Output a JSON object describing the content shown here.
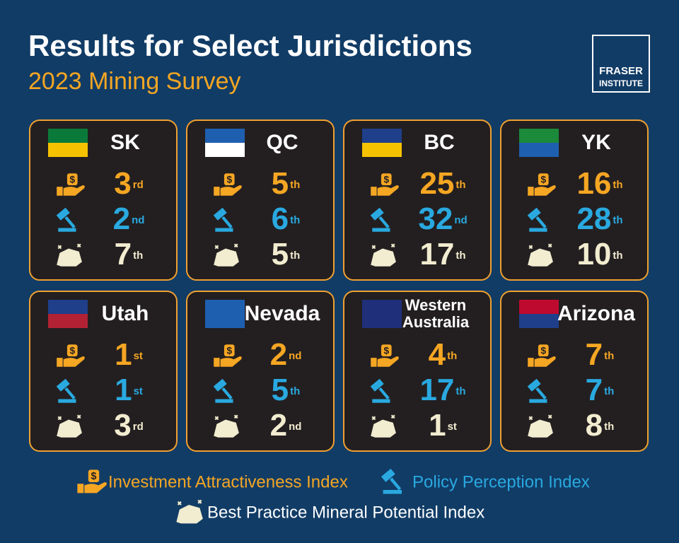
{
  "header": {
    "title": "Results for Select Jurisdictions",
    "subtitle": "2023 Mining Survey",
    "logo": [
      "FRASER",
      "INSTITUTE"
    ]
  },
  "cards": [
    {
      "name": [
        "SK"
      ],
      "ranks": [
        {
          "value": 3,
          "suffix": "rd"
        },
        {
          "value": 2,
          "suffix": "nd"
        },
        {
          "value": 7,
          "suffix": "th"
        }
      ]
    },
    {
      "name": [
        "QC"
      ],
      "ranks": [
        {
          "value": 5,
          "suffix": "th"
        },
        {
          "value": 6,
          "suffix": "th"
        },
        {
          "value": 5,
          "suffix": "th"
        }
      ]
    },
    {
      "name": [
        "BC"
      ],
      "ranks": [
        {
          "value": 25,
          "suffix": "th"
        },
        {
          "value": 32,
          "suffix": "nd"
        },
        {
          "value": 17,
          "suffix": "th"
        }
      ]
    },
    {
      "name": [
        "YK"
      ],
      "ranks": [
        {
          "value": 16,
          "suffix": "th"
        },
        {
          "value": 28,
          "suffix": "th"
        },
        {
          "value": 10,
          "suffix": "th"
        }
      ]
    },
    {
      "name": [
        "Utah"
      ],
      "ranks": [
        {
          "value": 1,
          "suffix": "st"
        },
        {
          "value": 1,
          "suffix": "st"
        },
        {
          "value": 3,
          "suffix": "rd"
        }
      ]
    },
    {
      "name": [
        "Nevada"
      ],
      "ranks": [
        {
          "value": 2,
          "suffix": "nd"
        },
        {
          "value": 5,
          "suffix": "th"
        },
        {
          "value": 2,
          "suffix": "nd"
        }
      ]
    },
    {
      "name": [
        "Western",
        "Australia"
      ],
      "ranks": [
        {
          "value": 4,
          "suffix": "th"
        },
        {
          "value": 17,
          "suffix": "th"
        },
        {
          "value": 1,
          "suffix": "st"
        }
      ]
    },
    {
      "name": [
        "Arizona"
      ],
      "ranks": [
        {
          "value": 7,
          "suffix": "th"
        },
        {
          "value": 7,
          "suffix": "th"
        },
        {
          "value": 8,
          "suffix": "th"
        }
      ]
    }
  ],
  "legend": [
    "Investment Attractiveness Index",
    "Policy Perception Index",
    "Best Practice Mineral Potential Index"
  ]
}
